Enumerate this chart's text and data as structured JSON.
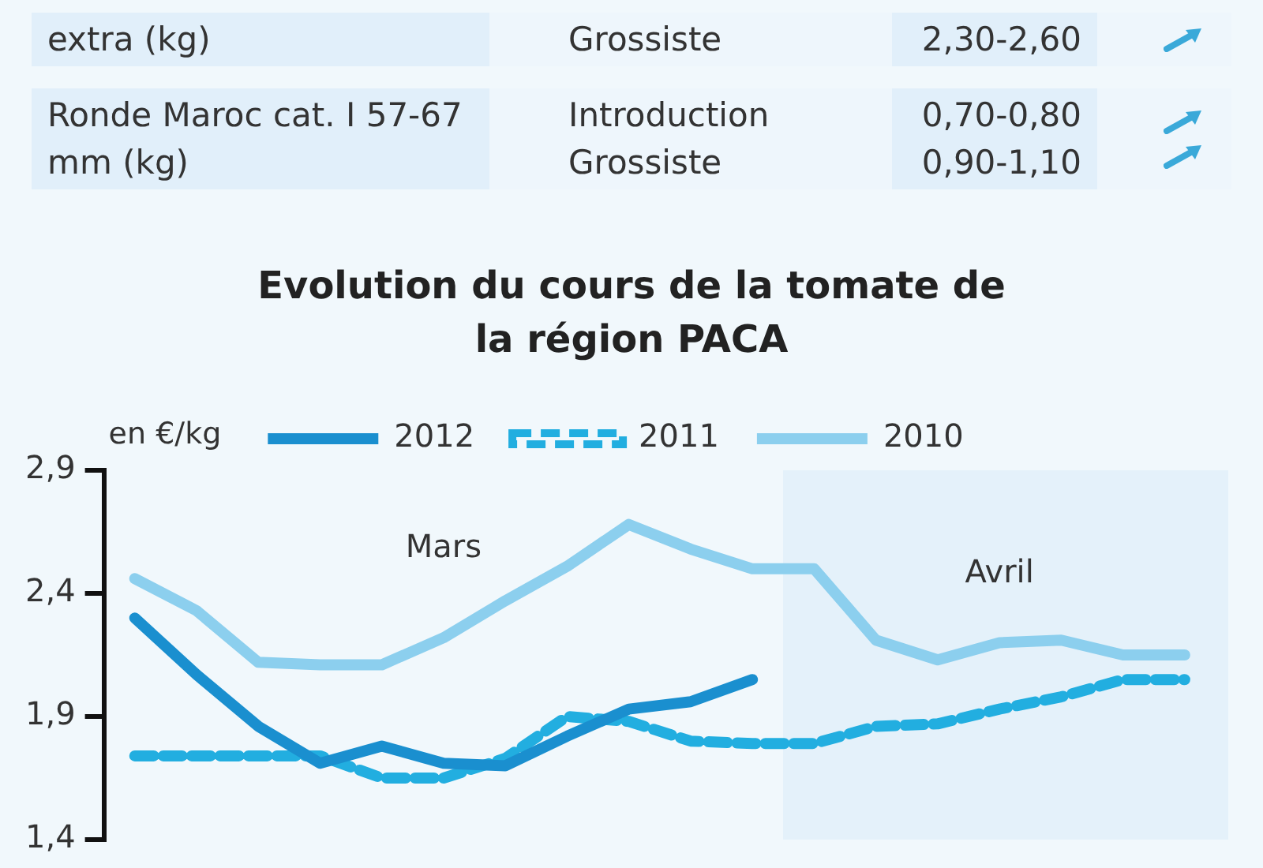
{
  "chart_data": {
    "type": "line",
    "title": "Evolution du cours de la tomate de la région PACA",
    "ylabel": "en €/kg",
    "categories": [
      null,
      null,
      null,
      null,
      null,
      null,
      null,
      null,
      null,
      null,
      null,
      null,
      null,
      null,
      null,
      null,
      null,
      null
    ],
    "series": [
      {
        "name": "2012",
        "color": "#1a8fcf",
        "line_style": "solid",
        "values": [
          2.3,
          2.07,
          1.86,
          1.71,
          1.78,
          1.71,
          1.7,
          1.82,
          1.93,
          1.96,
          2.05,
          null,
          null,
          null,
          null,
          null,
          null,
          null
        ]
      },
      {
        "name": "2011",
        "color": "#22aee0",
        "line_style": "dashed",
        "values": [
          1.74,
          1.74,
          1.74,
          1.74,
          1.65,
          1.65,
          1.73,
          1.9,
          1.88,
          1.8,
          1.79,
          1.79,
          1.86,
          1.87,
          1.93,
          1.98,
          2.05,
          2.05
        ]
      },
      {
        "name": "2010",
        "color": "#8ccfee",
        "line_style": "solid",
        "values": [
          2.46,
          2.33,
          2.12,
          2.11,
          2.11,
          2.22,
          2.37,
          2.51,
          2.68,
          2.58,
          2.5,
          2.5,
          2.21,
          2.13,
          2.2,
          2.21,
          2.15,
          2.15
        ]
      }
    ],
    "ylim": [
      1.4,
      2.9
    ],
    "yticks": [
      {
        "value": 1.4,
        "label": "1,4"
      },
      {
        "value": 1.9,
        "label": "1,9"
      },
      {
        "value": 2.4,
        "label": "2,4"
      },
      {
        "value": 2.9,
        "label": "2,9"
      }
    ],
    "tick_labels": "y",
    "grid": false,
    "legend": "top",
    "marker": "none",
    "annotations": [
      "extra (kg)",
      "Grossiste",
      "2,30-2,60",
      "Ronde Maroc cat. I 57-67 mm (kg)",
      "Introduction",
      "0,70-0,80",
      "Grossiste",
      "0,90-1,10",
      "Mars",
      "Avril"
    ]
  }
}
